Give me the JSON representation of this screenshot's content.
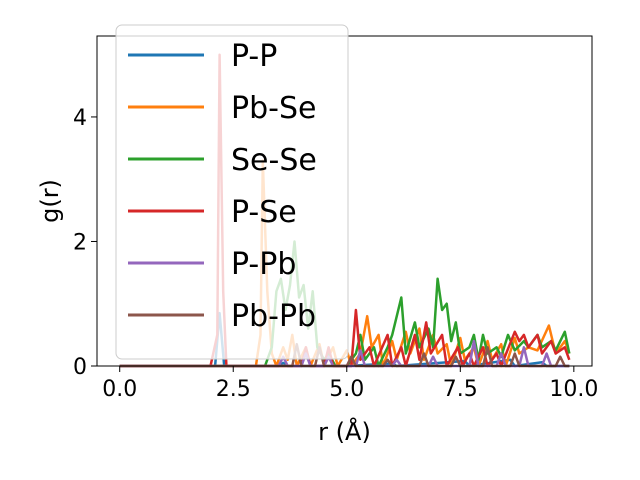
{
  "chart_data": {
    "type": "line",
    "title": "",
    "xlabel": "r (Å)",
    "ylabel": "g(r)",
    "xlim": [
      -0.5,
      10.4
    ],
    "ylim": [
      0,
      5.3
    ],
    "x_ticks": [
      0.0,
      2.5,
      5.0,
      7.5,
      10.0
    ],
    "x_tick_labels": [
      "0.0",
      "2.5",
      "5.0",
      "7.5",
      "10.0"
    ],
    "y_ticks": [
      0,
      2,
      4
    ],
    "y_tick_labels": [
      "0",
      "2",
      "4"
    ],
    "grid": false,
    "legend_position": "top-left",
    "series": [
      {
        "name": "P-P",
        "color": "#1f77b4",
        "points": [
          [
            0,
            0
          ],
          [
            2.0,
            0
          ],
          [
            2.1,
            0
          ],
          [
            2.2,
            0.85
          ],
          [
            2.3,
            0
          ],
          [
            2.5,
            0
          ],
          [
            3.5,
            0
          ],
          [
            3.6,
            0.05
          ],
          [
            3.7,
            0
          ],
          [
            5.0,
            0
          ],
          [
            6.0,
            0.04
          ],
          [
            6.1,
            0
          ],
          [
            7.6,
            0.08
          ],
          [
            7.7,
            0
          ],
          [
            8.6,
            0.1
          ],
          [
            8.7,
            0
          ],
          [
            9.3,
            0.06
          ],
          [
            9.4,
            0
          ],
          [
            9.9,
            0
          ]
        ]
      },
      {
        "name": "Pb-Se",
        "color": "#ff7f0e",
        "points": [
          [
            0,
            0
          ],
          [
            3.0,
            0
          ],
          [
            3.1,
            0.5
          ],
          [
            3.15,
            3.3
          ],
          [
            3.25,
            1.2
          ],
          [
            3.35,
            0.2
          ],
          [
            3.45,
            0
          ],
          [
            3.6,
            0.3
          ],
          [
            3.7,
            0.1
          ],
          [
            3.8,
            0.5
          ],
          [
            3.9,
            0
          ],
          [
            4.1,
            0.3
          ],
          [
            4.2,
            0
          ],
          [
            4.4,
            0.35
          ],
          [
            4.5,
            0
          ],
          [
            4.7,
            0.3
          ],
          [
            4.8,
            0
          ],
          [
            5.0,
            0.25
          ],
          [
            5.1,
            0
          ],
          [
            5.3,
            0.2
          ],
          [
            5.45,
            0.8
          ],
          [
            5.55,
            0.3
          ],
          [
            5.7,
            0.5
          ],
          [
            5.8,
            0
          ],
          [
            6.0,
            0.4
          ],
          [
            6.1,
            0.1
          ],
          [
            6.3,
            0.55
          ],
          [
            6.4,
            0.2
          ],
          [
            6.6,
            0.6
          ],
          [
            6.7,
            0.1
          ],
          [
            6.9,
            0.5
          ],
          [
            7.0,
            0.2
          ],
          [
            7.2,
            0.35
          ],
          [
            7.3,
            0
          ],
          [
            7.5,
            0.45
          ],
          [
            7.6,
            0.1
          ],
          [
            7.8,
            0.3
          ],
          [
            7.9,
            0
          ],
          [
            8.1,
            0.4
          ],
          [
            8.2,
            0.1
          ],
          [
            8.4,
            0.35
          ],
          [
            8.5,
            0
          ],
          [
            8.7,
            0.45
          ],
          [
            8.8,
            0.2
          ],
          [
            9.0,
            0.3
          ],
          [
            9.2,
            0.25
          ],
          [
            9.45,
            0.65
          ],
          [
            9.6,
            0.2
          ],
          [
            9.8,
            0.4
          ],
          [
            9.9,
            0.2
          ]
        ]
      },
      {
        "name": "Se-Se",
        "color": "#2ca02c",
        "points": [
          [
            0,
            0
          ],
          [
            3.2,
            0
          ],
          [
            3.35,
            0.3
          ],
          [
            3.45,
            1.2
          ],
          [
            3.55,
            1.4
          ],
          [
            3.65,
            0.9
          ],
          [
            3.75,
            1.3
          ],
          [
            3.85,
            2.0
          ],
          [
            3.95,
            1.1
          ],
          [
            4.05,
            1.3
          ],
          [
            4.15,
            0.6
          ],
          [
            4.25,
            1.2
          ],
          [
            4.35,
            0.3
          ],
          [
            4.5,
            0.1
          ],
          [
            4.6,
            0.2
          ],
          [
            4.75,
            0
          ],
          [
            5.0,
            0
          ],
          [
            5.2,
            0.2
          ],
          [
            5.3,
            0.5
          ],
          [
            5.4,
            0.1
          ],
          [
            5.6,
            0.3
          ],
          [
            5.7,
            0
          ],
          [
            5.9,
            0.3
          ],
          [
            6.0,
            0.5
          ],
          [
            6.2,
            1.1
          ],
          [
            6.3,
            0.2
          ],
          [
            6.5,
            0.7
          ],
          [
            6.6,
            0.3
          ],
          [
            6.8,
            0.6
          ],
          [
            6.9,
            0.3
          ],
          [
            7.0,
            1.4
          ],
          [
            7.1,
            0.9
          ],
          [
            7.2,
            1.0
          ],
          [
            7.3,
            0.4
          ],
          [
            7.4,
            0.7
          ],
          [
            7.5,
            0.2
          ],
          [
            7.7,
            0.3
          ],
          [
            7.8,
            0.5
          ],
          [
            7.9,
            0.1
          ],
          [
            8.0,
            0.5
          ],
          [
            8.1,
            0.2
          ],
          [
            8.3,
            0.3
          ],
          [
            8.4,
            0.15
          ],
          [
            8.55,
            0.5
          ],
          [
            8.7,
            0.25
          ],
          [
            8.9,
            0.4
          ],
          [
            9.0,
            0.3
          ],
          [
            9.2,
            0.5
          ],
          [
            9.3,
            0.3
          ],
          [
            9.5,
            0.4
          ],
          [
            9.6,
            0.25
          ],
          [
            9.8,
            0.55
          ],
          [
            9.9,
            0.2
          ]
        ]
      },
      {
        "name": "P-Se",
        "color": "#d62728",
        "points": [
          [
            0,
            0
          ],
          [
            2.0,
            0
          ],
          [
            2.15,
            0.5
          ],
          [
            2.2,
            5.0
          ],
          [
            2.28,
            1.2
          ],
          [
            2.35,
            0
          ],
          [
            4.0,
            0
          ],
          [
            4.1,
            0.3
          ],
          [
            4.2,
            0
          ],
          [
            4.5,
            0
          ],
          [
            4.6,
            0.3
          ],
          [
            4.7,
            0
          ],
          [
            5.1,
            0
          ],
          [
            5.2,
            0.9
          ],
          [
            5.3,
            0.1
          ],
          [
            5.5,
            0.3
          ],
          [
            5.6,
            0
          ],
          [
            5.9,
            0.5
          ],
          [
            6.0,
            0
          ],
          [
            6.2,
            0.3
          ],
          [
            6.3,
            0
          ],
          [
            6.5,
            0.5
          ],
          [
            6.6,
            0.1
          ],
          [
            6.75,
            0.7
          ],
          [
            6.85,
            0.2
          ],
          [
            7.1,
            0.5
          ],
          [
            7.2,
            0
          ],
          [
            7.45,
            0.3
          ],
          [
            7.55,
            0
          ],
          [
            7.7,
            0.2
          ],
          [
            7.8,
            0
          ],
          [
            8.0,
            0.3
          ],
          [
            8.1,
            0
          ],
          [
            8.3,
            0.2
          ],
          [
            8.4,
            0
          ],
          [
            8.7,
            0.55
          ],
          [
            8.8,
            0.4
          ],
          [
            8.9,
            0.5
          ],
          [
            9.0,
            0.3
          ],
          [
            9.2,
            0.5
          ],
          [
            9.3,
            0.2
          ],
          [
            9.5,
            0.4
          ],
          [
            9.6,
            0.2
          ],
          [
            9.8,
            0.3
          ],
          [
            9.9,
            0.1
          ]
        ]
      },
      {
        "name": "P-Pb",
        "color": "#9467bd",
        "points": [
          [
            0,
            0
          ],
          [
            3.5,
            0
          ],
          [
            3.6,
            0.15
          ],
          [
            3.7,
            0
          ],
          [
            4.0,
            0
          ],
          [
            4.1,
            0.2
          ],
          [
            4.2,
            0
          ],
          [
            4.5,
            0
          ],
          [
            4.6,
            0.15
          ],
          [
            4.7,
            0
          ],
          [
            5.2,
            0
          ],
          [
            5.3,
            0.25
          ],
          [
            5.4,
            0
          ],
          [
            6.0,
            0
          ],
          [
            6.1,
            0.1
          ],
          [
            6.2,
            0
          ],
          [
            6.8,
            0
          ],
          [
            6.9,
            0.15
          ],
          [
            7.0,
            0
          ],
          [
            7.7,
            0
          ],
          [
            7.8,
            0.4
          ],
          [
            7.9,
            0
          ],
          [
            8.3,
            0
          ],
          [
            8.4,
            0.2
          ],
          [
            8.5,
            0
          ],
          [
            8.8,
            0
          ],
          [
            8.9,
            0.3
          ],
          [
            9.0,
            0
          ],
          [
            9.3,
            0
          ],
          [
            9.4,
            0.2
          ],
          [
            9.5,
            0
          ],
          [
            9.9,
            0
          ]
        ]
      },
      {
        "name": "Pb-Pb",
        "color": "#8c564b",
        "points": [
          [
            0,
            0
          ],
          [
            3.8,
            0
          ],
          [
            3.9,
            0.35
          ],
          [
            4.0,
            0
          ],
          [
            4.3,
            0
          ],
          [
            4.4,
            0.3
          ],
          [
            4.5,
            0
          ],
          [
            5.0,
            0
          ],
          [
            5.1,
            0.15
          ],
          [
            5.2,
            0
          ],
          [
            5.8,
            0
          ],
          [
            5.9,
            0.1
          ],
          [
            6.0,
            0
          ],
          [
            6.6,
            0
          ],
          [
            6.7,
            0.2
          ],
          [
            6.8,
            0
          ],
          [
            7.3,
            0
          ],
          [
            7.4,
            0.15
          ],
          [
            7.5,
            0
          ],
          [
            8.0,
            0
          ],
          [
            8.1,
            0.3
          ],
          [
            8.2,
            0
          ],
          [
            8.6,
            0
          ],
          [
            8.7,
            0.2
          ],
          [
            8.8,
            0
          ],
          [
            9.6,
            0
          ],
          [
            9.7,
            0.15
          ],
          [
            9.8,
            0
          ],
          [
            9.9,
            0
          ]
        ]
      }
    ]
  }
}
